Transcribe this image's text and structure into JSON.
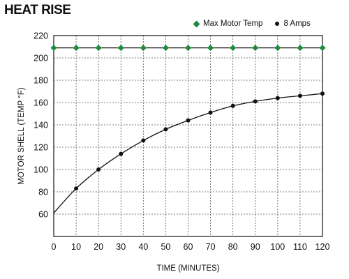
{
  "chart_data": {
    "type": "line",
    "title": "HEAT RISE",
    "xlabel": "TIME (MINUTES)",
    "ylabel": "MOTOR SHELL (TEMP °F)",
    "xlim": [
      0,
      120
    ],
    "ylim": [
      40,
      220
    ],
    "x_ticks": [
      0,
      10,
      20,
      30,
      40,
      50,
      60,
      70,
      80,
      90,
      100,
      110,
      120
    ],
    "y_ticks": [
      60,
      80,
      100,
      120,
      140,
      160,
      180,
      200,
      220
    ],
    "grid": true,
    "legend_position": "top-right",
    "series": [
      {
        "name": "Max Motor Temp",
        "color": "#1f8c3b",
        "marker": "diamond",
        "x": [
          0,
          10,
          20,
          30,
          40,
          50,
          60,
          70,
          80,
          90,
          100,
          110,
          120
        ],
        "y": [
          209,
          209,
          209,
          209,
          209,
          209,
          209,
          209,
          209,
          209,
          209,
          209,
          209
        ]
      },
      {
        "name": "8 Amps",
        "color": "#111111",
        "marker": "dot",
        "x": [
          0,
          10,
          20,
          30,
          40,
          50,
          60,
          70,
          80,
          90,
          100,
          110,
          120
        ],
        "y": [
          61,
          83,
          100,
          114,
          126,
          136,
          144,
          151,
          157,
          161,
          164,
          166,
          168
        ]
      }
    ]
  }
}
